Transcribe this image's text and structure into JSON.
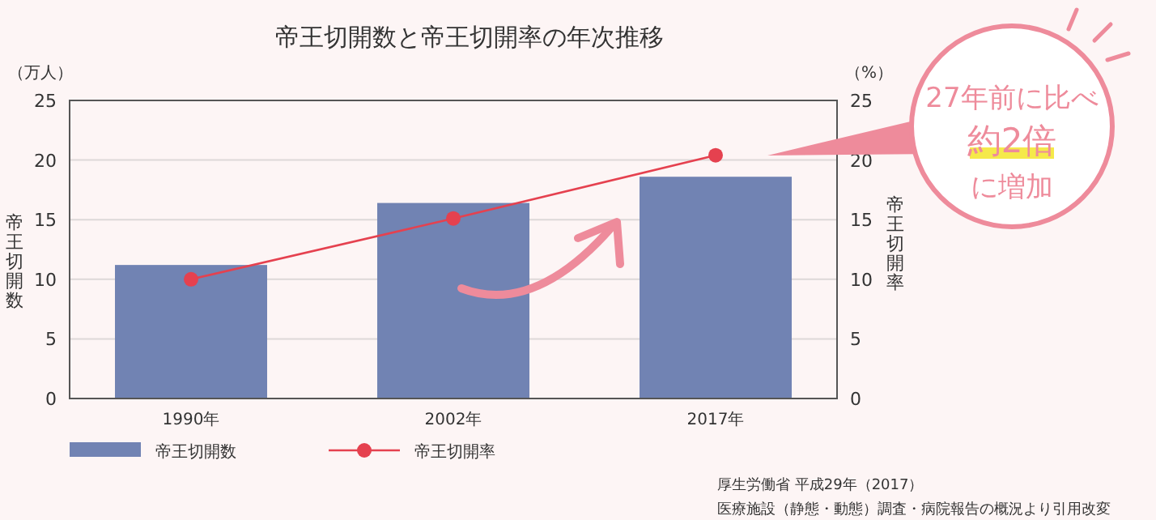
{
  "chart_data": {
    "type": "bar",
    "title": "帝王切開数と帝王切開率の年次推移",
    "categories": [
      "1990年",
      "2002年",
      "2017年"
    ],
    "series": [
      {
        "name": "帝王切開数",
        "color": "#7183b3",
        "values": [
          11.2,
          16.4,
          18.6
        ]
      },
      {
        "name": "帝王切開率",
        "type": "line",
        "axis": "y2",
        "color": "#e5414f",
        "marker": "circle",
        "values": [
          10.0,
          15.1,
          20.4
        ]
      }
    ],
    "ylim": [
      0,
      25
    ],
    "yticks": [
      0,
      5,
      10,
      15,
      20,
      25
    ],
    "y2lim": [
      0,
      25
    ],
    "y2ticks": [
      0,
      5,
      10,
      15,
      20,
      25
    ],
    "ylabel": "帝王切開数",
    "y2label": "帝王切開率",
    "grid": "y",
    "legend": "bottom left",
    "annotations": [
      "（万人）",
      "（%）",
      "27年前に比べ",
      "約2倍",
      "に増加",
      "厚生労働省 平成29年（2017）",
      "医療施設（静態・動態）調査・病院報告の概況より引用改変"
    ]
  }
}
